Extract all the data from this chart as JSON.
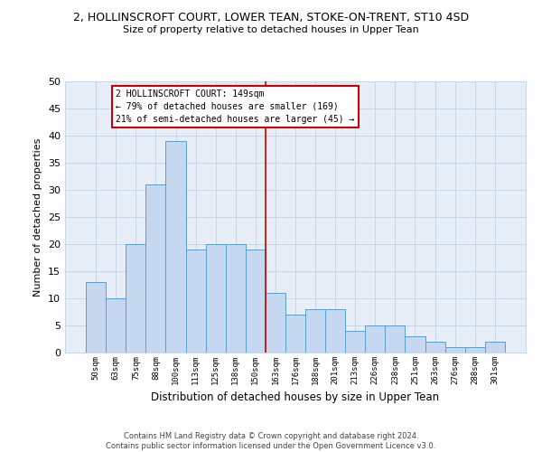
{
  "title_line1": "2, HOLLINSCROFT COURT, LOWER TEAN, STOKE-ON-TRENT, ST10 4SD",
  "title_line2": "Size of property relative to detached houses in Upper Tean",
  "xlabel": "Distribution of detached houses by size in Upper Tean",
  "ylabel": "Number of detached properties",
  "categories": [
    "50sqm",
    "63sqm",
    "75sqm",
    "88sqm",
    "100sqm",
    "113sqm",
    "125sqm",
    "138sqm",
    "150sqm",
    "163sqm",
    "176sqm",
    "188sqm",
    "201sqm",
    "213sqm",
    "226sqm",
    "238sqm",
    "251sqm",
    "263sqm",
    "276sqm",
    "288sqm",
    "301sqm"
  ],
  "values": [
    13,
    10,
    20,
    31,
    39,
    19,
    20,
    20,
    19,
    11,
    7,
    8,
    8,
    4,
    5,
    5,
    3,
    2,
    1,
    1,
    2
  ],
  "bar_color": "#c5d8f0",
  "bar_edge_color": "#5a9fd4",
  "annotation_text": "2 HOLLINSCROFT COURT: 149sqm\n← 79% of detached houses are smaller (169)\n21% of semi-detached houses are larger (45) →",
  "annotation_box_color": "#ffffff",
  "annotation_box_edge": "#cc0000",
  "vline_x": 8.5,
  "vline_color": "#cc0000",
  "ylim": [
    0,
    50
  ],
  "yticks": [
    0,
    5,
    10,
    15,
    20,
    25,
    30,
    35,
    40,
    45,
    50
  ],
  "grid_color": "#c8d4e8",
  "bg_color": "#e8eef8",
  "footer": "Contains HM Land Registry data © Crown copyright and database right 2024.\nContains public sector information licensed under the Open Government Licence v3.0."
}
